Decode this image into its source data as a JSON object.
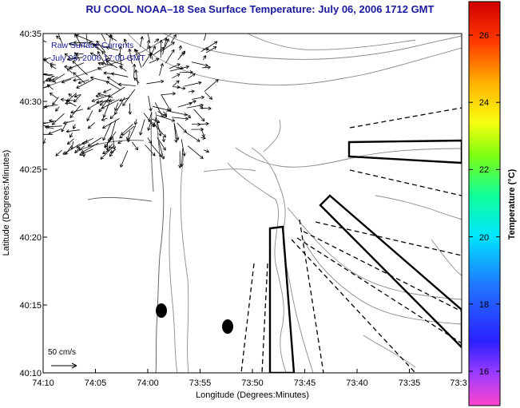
{
  "title": "RU COOL  NOAA–18  Sea Surface Temperature:  July 06, 2006 1712 GMT",
  "inset": {
    "line1": "Raw Surface Currents",
    "line2": "July 06, 2006 17:00 GMT"
  },
  "axes": {
    "xlabel": "Longitude (Degrees:Minutes)",
    "ylabel": "Latitude (Degrees:Minutes)",
    "x_ticks": [
      "74:10",
      "74:05",
      "74:00",
      "73:55",
      "73:50",
      "73:45",
      "73:40",
      "73:35",
      "73:3"
    ],
    "y_ticks": [
      "40:35",
      "40:30",
      "40:25",
      "40:20",
      "40:15",
      "40:10"
    ]
  },
  "scale_vector": {
    "label": "50 cm/s"
  },
  "colorbar": {
    "label": "Temperature (°C)",
    "ticks": [
      "26",
      "24",
      "22",
      "20",
      "18",
      "16"
    ],
    "min": 15,
    "max": 27.3
  },
  "colors": {
    "title": "#1a1a9c",
    "inset_text": "#1a1a9c",
    "contour": "#8a8a8a",
    "frame": "#000000"
  }
}
